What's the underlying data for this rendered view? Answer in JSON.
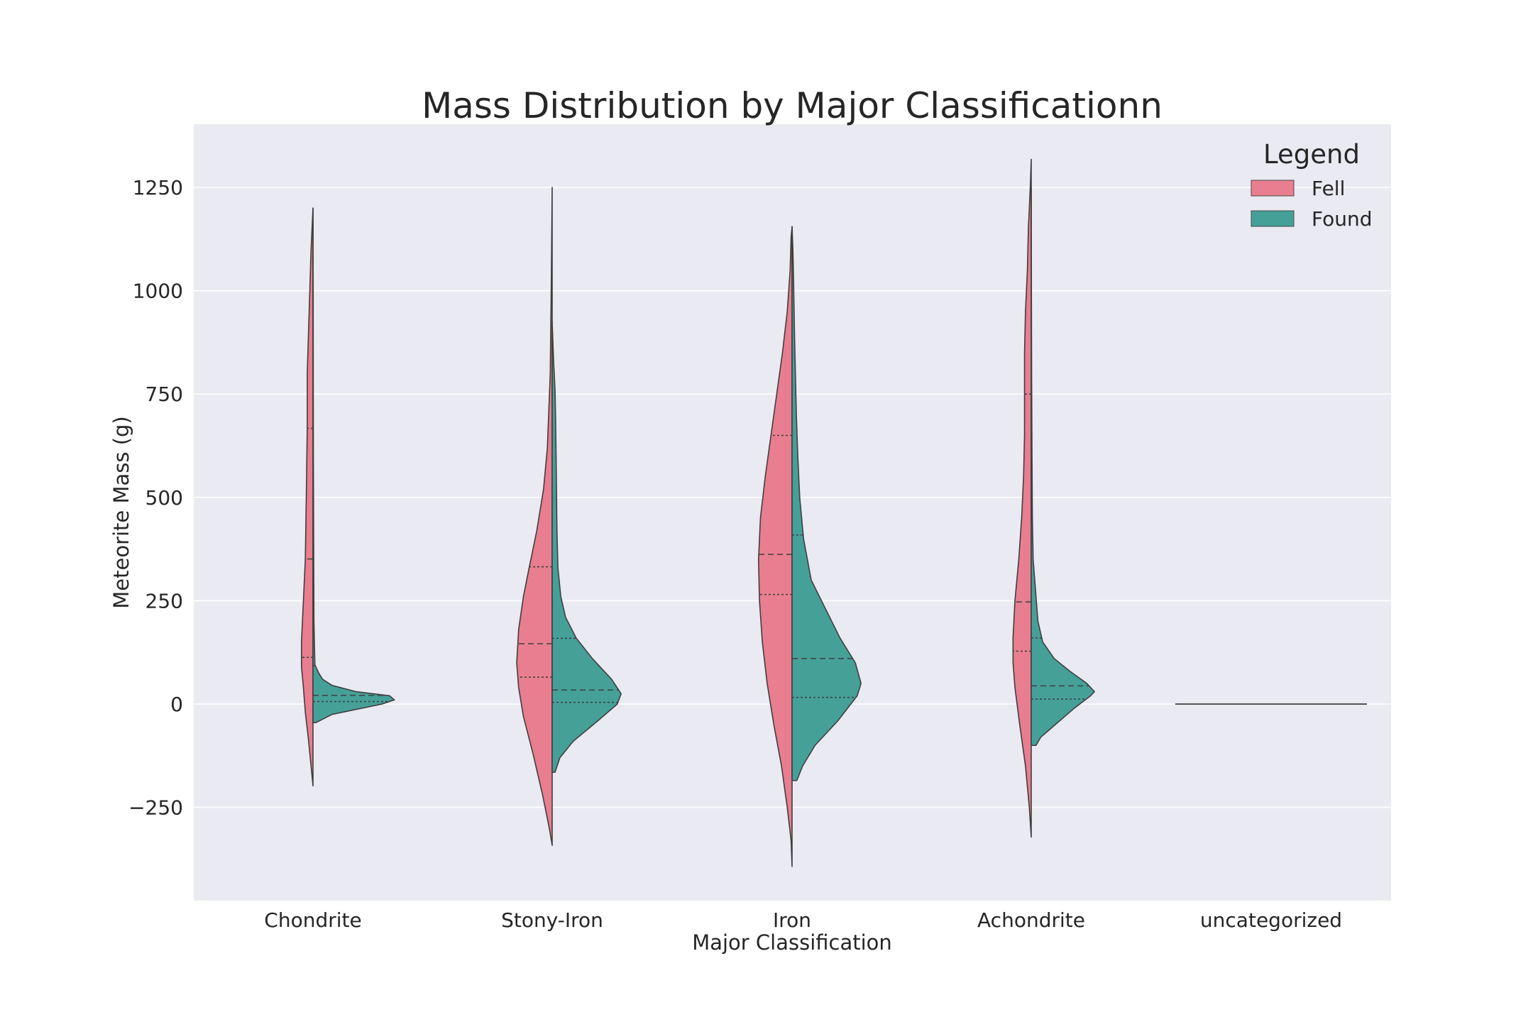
{
  "chart_data": {
    "type": "violin",
    "title": "Mass Distribution by Major Classificationn",
    "xlabel": "Major Classification",
    "ylabel": "Meteorite Mass (g)",
    "ylim": [
      -470,
      1400
    ],
    "yticks": [
      -250,
      0,
      250,
      500,
      750,
      1000,
      1250
    ],
    "ytick_labels": [
      "−250",
      "0",
      "250",
      "500",
      "750",
      "1000",
      "1250"
    ],
    "categories": [
      "Chondrite",
      "Stony-Iron",
      "Iron",
      "Achondrite",
      "uncategorized"
    ],
    "grid": true,
    "split": true,
    "legend": {
      "title": "Legend",
      "placement": "top-right",
      "entries": [
        "Fell",
        "Found"
      ]
    },
    "series": [
      {
        "name": "Fell",
        "color": "#e87e8f",
        "side": "left",
        "violins": [
          {
            "category": "Chondrite",
            "range": [
              -198,
              1200
            ],
            "quartiles": [
              113,
              351,
              667
            ]
          },
          {
            "category": "Stony-Iron",
            "range": [
              -342,
              1250
            ],
            "quartiles": [
              65,
              146,
              332
            ]
          },
          {
            "category": "Iron",
            "range": [
              -393,
              1155
            ],
            "quartiles": [
              265,
              362,
              650
            ]
          },
          {
            "category": "Achondrite",
            "range": [
              -322,
              1318
            ],
            "quartiles": [
              128,
              247,
              750
            ]
          },
          {
            "category": "uncategorized",
            "range": [
              0,
              0
            ],
            "quartiles": [
              0,
              0,
              0
            ]
          }
        ]
      },
      {
        "name": "Found",
        "color": "#45a098",
        "side": "right",
        "violins": [
          {
            "category": "Chondrite",
            "range": [
              -45,
              95
            ],
            "quartiles": [
              6,
              21,
              93
            ]
          },
          {
            "category": "Stony-Iron",
            "range": [
              -165,
              925
            ],
            "quartiles": [
              4,
              34,
              159
            ]
          },
          {
            "category": "Iron",
            "range": [
              -185,
              1155
            ],
            "quartiles": [
              16,
              110,
              409
            ]
          },
          {
            "category": "Achondrite",
            "range": [
              -100,
              350
            ],
            "quartiles": [
              12,
              44,
              160
            ]
          },
          {
            "category": "uncategorized",
            "range": [
              0,
              0
            ],
            "quartiles": [
              0,
              0,
              0
            ]
          }
        ]
      }
    ]
  }
}
